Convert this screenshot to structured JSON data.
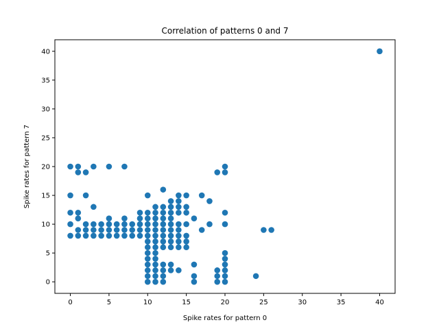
{
  "chart_data": {
    "type": "scatter",
    "title": "Correlation of patterns 0 and 7",
    "xlabel": "Spike rates for pattern 0",
    "ylabel": "Spike rates for pattern 7",
    "xlim": [
      -2,
      42
    ],
    "ylim": [
      -2,
      42
    ],
    "xticks": [
      0,
      5,
      10,
      15,
      20,
      25,
      30,
      35,
      40
    ],
    "yticks": [
      0,
      5,
      10,
      15,
      20,
      25,
      30,
      35,
      40
    ],
    "grid": false,
    "legend": "none",
    "marker_color": "#1f77b4",
    "series": [
      {
        "points": [
          [
            0,
            20
          ],
          [
            1,
            20
          ],
          [
            3,
            20
          ],
          [
            5,
            20
          ],
          [
            7,
            20
          ],
          [
            1,
            19
          ],
          [
            2,
            19
          ],
          [
            0,
            15
          ],
          [
            2,
            15
          ],
          [
            3,
            13
          ],
          [
            0,
            12
          ],
          [
            1,
            12
          ],
          [
            1,
            11
          ],
          [
            0,
            10
          ],
          [
            0,
            8
          ],
          [
            1,
            9
          ],
          [
            1,
            8
          ],
          [
            2,
            10
          ],
          [
            2,
            9
          ],
          [
            2,
            8
          ],
          [
            3,
            10
          ],
          [
            3,
            9
          ],
          [
            3,
            8
          ],
          [
            4,
            10
          ],
          [
            4,
            9
          ],
          [
            4,
            8
          ],
          [
            5,
            11
          ],
          [
            5,
            10
          ],
          [
            5,
            9
          ],
          [
            5,
            8
          ],
          [
            6,
            10
          ],
          [
            6,
            9
          ],
          [
            6,
            8
          ],
          [
            7,
            11
          ],
          [
            7,
            10
          ],
          [
            7,
            9
          ],
          [
            7,
            8
          ],
          [
            8,
            10
          ],
          [
            8,
            9
          ],
          [
            8,
            8
          ],
          [
            9,
            12
          ],
          [
            9,
            11
          ],
          [
            9,
            10
          ],
          [
            9,
            9
          ],
          [
            9,
            8
          ],
          [
            10,
            15
          ],
          [
            10,
            12
          ],
          [
            10,
            11
          ],
          [
            10,
            10
          ],
          [
            10,
            9
          ],
          [
            10,
            8
          ],
          [
            10,
            7
          ],
          [
            10,
            6
          ],
          [
            10,
            5
          ],
          [
            10,
            4
          ],
          [
            10,
            3
          ],
          [
            10,
            2
          ],
          [
            10,
            1
          ],
          [
            10,
            0
          ],
          [
            11,
            13
          ],
          [
            11,
            12
          ],
          [
            11,
            11
          ],
          [
            11,
            10
          ],
          [
            11,
            9
          ],
          [
            11,
            8
          ],
          [
            11,
            7
          ],
          [
            11,
            6
          ],
          [
            11,
            5
          ],
          [
            11,
            4
          ],
          [
            11,
            3
          ],
          [
            11,
            2
          ],
          [
            11,
            1
          ],
          [
            11,
            0
          ],
          [
            12,
            16
          ],
          [
            12,
            13
          ],
          [
            12,
            12
          ],
          [
            12,
            11
          ],
          [
            12,
            10
          ],
          [
            12,
            9
          ],
          [
            12,
            8
          ],
          [
            12,
            7
          ],
          [
            12,
            6
          ],
          [
            12,
            3
          ],
          [
            12,
            2
          ],
          [
            12,
            1
          ],
          [
            12,
            0
          ],
          [
            13,
            14
          ],
          [
            13,
            13
          ],
          [
            13,
            12
          ],
          [
            13,
            11
          ],
          [
            13,
            10
          ],
          [
            13,
            9
          ],
          [
            13,
            8
          ],
          [
            13,
            7
          ],
          [
            13,
            6
          ],
          [
            13,
            3
          ],
          [
            13,
            2
          ],
          [
            14,
            15
          ],
          [
            14,
            14
          ],
          [
            14,
            13
          ],
          [
            14,
            12
          ],
          [
            14,
            10
          ],
          [
            14,
            9
          ],
          [
            14,
            8
          ],
          [
            14,
            7
          ],
          [
            14,
            6
          ],
          [
            14,
            2
          ],
          [
            15,
            15
          ],
          [
            15,
            13
          ],
          [
            15,
            12
          ],
          [
            15,
            10
          ],
          [
            15,
            8
          ],
          [
            15,
            7
          ],
          [
            15,
            6
          ],
          [
            16,
            11
          ],
          [
            16,
            3
          ],
          [
            16,
            1
          ],
          [
            16,
            0
          ],
          [
            17,
            15
          ],
          [
            17,
            9
          ],
          [
            18,
            14
          ],
          [
            18,
            10
          ],
          [
            19,
            19
          ],
          [
            19,
            2
          ],
          [
            19,
            1
          ],
          [
            19,
            0
          ],
          [
            20,
            20
          ],
          [
            20,
            19
          ],
          [
            20,
            12
          ],
          [
            20,
            10
          ],
          [
            20,
            5
          ],
          [
            20,
            4
          ],
          [
            20,
            3
          ],
          [
            20,
            2
          ],
          [
            20,
            1
          ],
          [
            20,
            0
          ],
          [
            24,
            1
          ],
          [
            25,
            9
          ],
          [
            26,
            9
          ],
          [
            40,
            40
          ]
        ]
      }
    ]
  }
}
